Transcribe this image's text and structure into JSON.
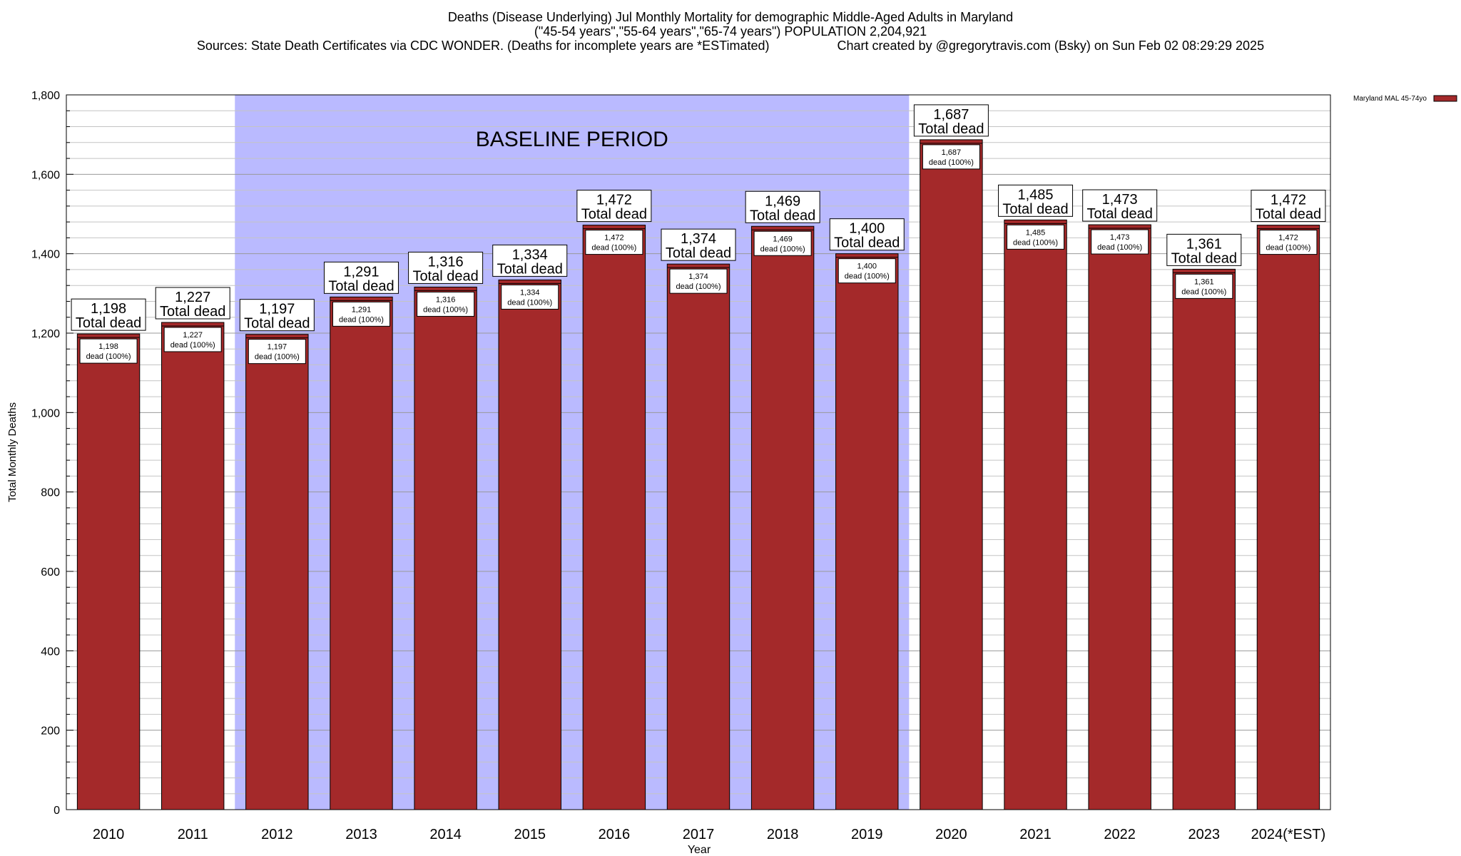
{
  "header": {
    "title": "Deaths (Disease Underlying) Jul Monthly Mortality for demographic Middle-Aged Adults in Maryland",
    "subtitle": "(\"45-54 years\",\"55-64 years\",\"65-74 years\") POPULATION 2,204,921",
    "sources": "Sources: State Death Certificates via CDC WONDER. (Deaths for incomplete years are *ESTimated)",
    "credit": "Chart created by @gregorytravis.com (Bsky) on Sun Feb 02 08:29:29 2025"
  },
  "chart_data": {
    "type": "bar",
    "categories": [
      "2010",
      "2011",
      "2012",
      "2013",
      "2014",
      "2015",
      "2016",
      "2017",
      "2018",
      "2019",
      "2020",
      "2021",
      "2022",
      "2023",
      "2024(*EST)"
    ],
    "series": [
      {
        "name": "Maryland MAL 45-74yo",
        "values": [
          1198,
          1227,
          1197,
          1291,
          1316,
          1334,
          1472,
          1374,
          1469,
          1400,
          1687,
          1485,
          1473,
          1361,
          1472
        ]
      }
    ],
    "top_labels": [
      "1,198",
      "1,227",
      "1,197",
      "1,291",
      "1,316",
      "1,334",
      "1,472",
      "1,374",
      "1,469",
      "1,400",
      "1,687",
      "1,485",
      "1,473",
      "1,361",
      "1,472"
    ],
    "top_label_suffix": "Total dead",
    "inner_label_suffix": "dead (100%)",
    "xlabel": "Year",
    "ylabel": "Total Monthly Deaths",
    "ylim": [
      0,
      1800
    ],
    "yticks": [
      0,
      200,
      400,
      600,
      800,
      1000,
      1200,
      1400,
      1600,
      1800
    ],
    "ytick_labels": [
      "0",
      "200",
      "400",
      "600",
      "800",
      "1,000",
      "1,200",
      "1,400",
      "1,600",
      "1,800"
    ],
    "minor_tick_step": 40,
    "baseline_region": {
      "label": "BASELINE PERIOD",
      "from": "2012",
      "to": "2019",
      "color": "#babaff"
    },
    "bar_color": "#a4292a",
    "legend_position": "top-right"
  }
}
